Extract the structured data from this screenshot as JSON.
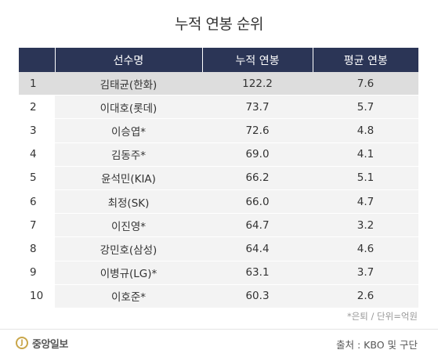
{
  "title": "누적 연봉 순위",
  "table": {
    "headers": [
      "",
      "선수명",
      "누적 연봉",
      "평균 연봉"
    ],
    "rows": [
      {
        "rank": "1",
        "name": "김태균(한화)",
        "total": "122.2",
        "avg": "7.6"
      },
      {
        "rank": "2",
        "name": "이대호(롯데)",
        "total": "73.7",
        "avg": "5.7"
      },
      {
        "rank": "3",
        "name": "이승엽*",
        "total": "72.6",
        "avg": "4.8"
      },
      {
        "rank": "4",
        "name": "김동주*",
        "total": "69.0",
        "avg": "4.1"
      },
      {
        "rank": "5",
        "name": "윤석민(KIA)",
        "total": "66.2",
        "avg": "5.1"
      },
      {
        "rank": "6",
        "name": "최정(SK)",
        "total": "66.0",
        "avg": "4.7"
      },
      {
        "rank": "7",
        "name": "이진영*",
        "total": "64.7",
        "avg": "3.2"
      },
      {
        "rank": "8",
        "name": "강민호(삼성)",
        "total": "64.4",
        "avg": "4.6"
      },
      {
        "rank": "9",
        "name": "이병규(LG)*",
        "total": "63.1",
        "avg": "3.7"
      },
      {
        "rank": "10",
        "name": "이호준*",
        "total": "60.3",
        "avg": "2.6"
      }
    ]
  },
  "note": "*은퇴 / 단위=억원",
  "footer": {
    "logo_text": "중앙일보",
    "logo_mark": "J",
    "source": "출처 : KBO 및 구단"
  },
  "colors": {
    "header_bg": "#2b3556",
    "highlight_row": "#dddddd",
    "row_bg": "#f3f3f3",
    "logo_accent": "#c9a64a"
  }
}
